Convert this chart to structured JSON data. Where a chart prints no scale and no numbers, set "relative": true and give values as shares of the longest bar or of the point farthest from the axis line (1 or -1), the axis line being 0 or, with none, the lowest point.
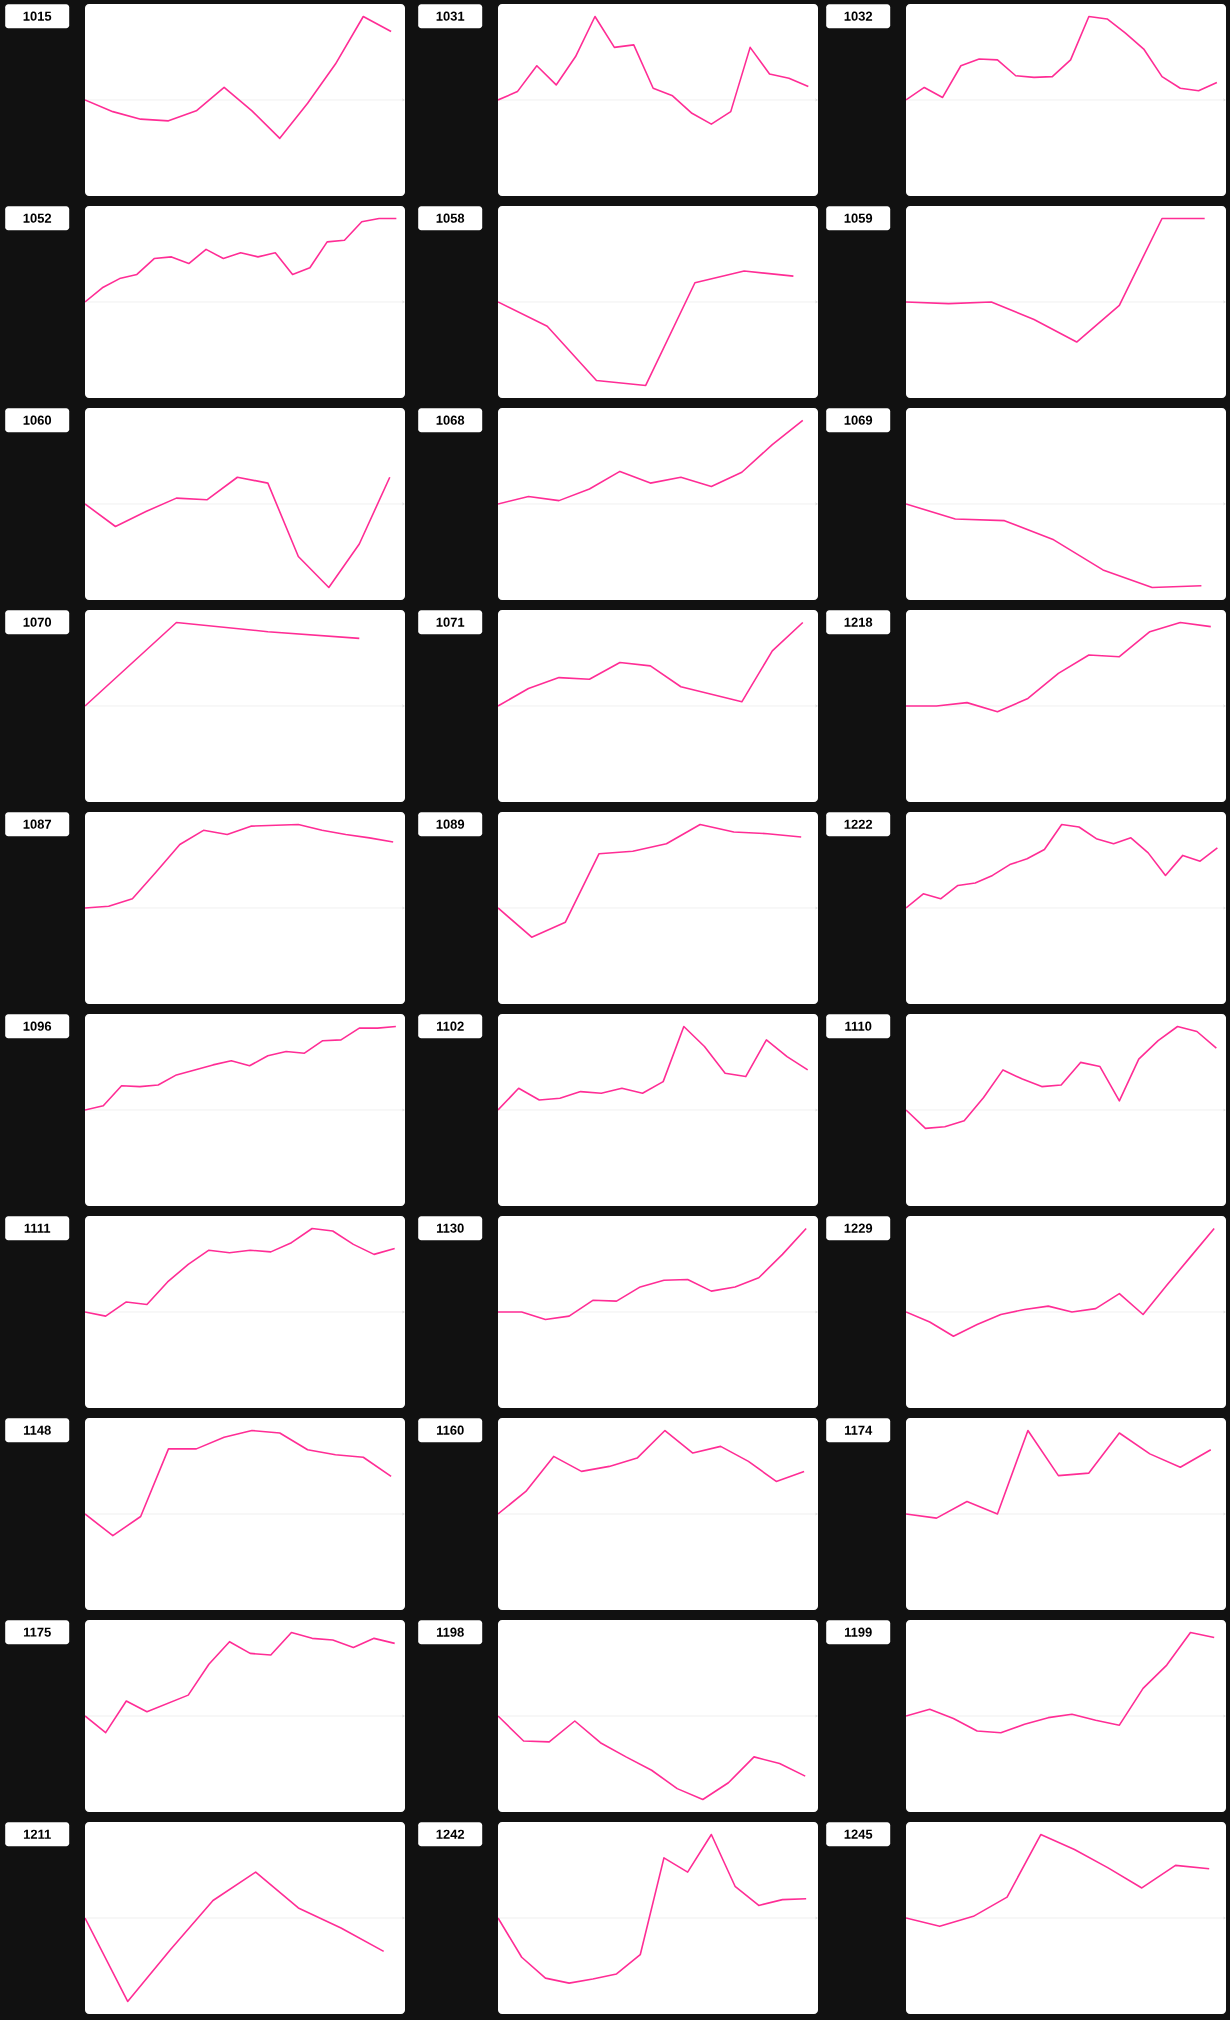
{
  "chart_data": [
    {
      "type": "line",
      "title": "1015",
      "relative": true,
      "color": "#ff2d95",
      "categories": [
        null,
        null,
        null,
        null,
        null,
        null,
        null,
        null,
        null,
        null,
        null,
        null
      ],
      "values": [
        0,
        -0.14,
        -0.23,
        -0.25,
        -0.13,
        0.15,
        -0.13,
        -0.46,
        -0.04,
        0.43,
        1,
        0.82
      ]
    },
    {
      "type": "line",
      "title": "1031",
      "relative": true,
      "color": "#ff2d95",
      "categories": [
        null,
        null,
        null,
        null,
        null,
        null,
        null,
        null,
        null,
        null,
        null,
        null,
        null,
        null,
        null,
        null,
        null
      ],
      "values": [
        0,
        0.1,
        0.41,
        0.18,
        0.52,
        1,
        0.63,
        0.66,
        0.14,
        0.05,
        -0.16,
        -0.29,
        -0.14,
        0.63,
        0.31,
        0.26,
        0.16
      ]
    },
    {
      "type": "line",
      "title": "1032",
      "relative": true,
      "color": "#ff2d95",
      "categories": [
        null,
        null,
        null,
        null,
        null,
        null,
        null,
        null,
        null,
        null,
        null,
        null,
        null,
        null,
        null,
        null,
        null,
        null
      ],
      "values": [
        0,
        0.15,
        0.03,
        0.41,
        0.49,
        0.48,
        0.29,
        0.27,
        0.28,
        0.48,
        1,
        0.97,
        0.8,
        0.61,
        0.28,
        0.14,
        0.11,
        0.21
      ]
    },
    {
      "type": "line",
      "title": "1052",
      "relative": true,
      "color": "#ff2d95",
      "categories": [
        null,
        null,
        null,
        null,
        null,
        null,
        null,
        null,
        null,
        null,
        null,
        null,
        null,
        null,
        null,
        null,
        null,
        null,
        null
      ],
      "values": [
        0,
        0.17,
        0.28,
        0.33,
        0.52,
        0.54,
        0.46,
        0.63,
        0.52,
        0.59,
        0.54,
        0.59,
        0.33,
        0.41,
        0.72,
        0.74,
        0.96,
        1,
        1
      ]
    },
    {
      "type": "line",
      "title": "1058",
      "relative": true,
      "color": "#ff2d95",
      "categories": [
        null,
        null,
        null,
        null,
        null,
        null,
        null
      ],
      "values": [
        0,
        -0.29,
        -0.94,
        -1,
        0.23,
        0.37,
        0.31
      ]
    },
    {
      "type": "line",
      "title": "1059",
      "relative": true,
      "color": "#ff2d95",
      "categories": [
        null,
        null,
        null,
        null,
        null,
        null,
        null,
        null
      ],
      "values": [
        0,
        -0.02,
        0,
        -0.21,
        -0.48,
        -0.04,
        1,
        1
      ]
    },
    {
      "type": "line",
      "title": "1060",
      "relative": true,
      "color": "#ff2d95",
      "categories": [
        null,
        null,
        null,
        null,
        null,
        null,
        null,
        null,
        null,
        null,
        null
      ],
      "values": [
        0,
        -0.27,
        -0.09,
        0.07,
        0.05,
        0.32,
        0.25,
        -0.63,
        -1,
        -0.48,
        0.32
      ]
    },
    {
      "type": "line",
      "title": "1068",
      "relative": true,
      "color": "#ff2d95",
      "categories": [
        null,
        null,
        null,
        null,
        null,
        null,
        null,
        null,
        null,
        null,
        null
      ],
      "values": [
        0,
        0.09,
        0.04,
        0.18,
        0.39,
        0.25,
        0.32,
        0.21,
        0.38,
        0.71,
        1
      ]
    },
    {
      "type": "line",
      "title": "1069",
      "relative": true,
      "color": "#ff2d95",
      "categories": [
        null,
        null,
        null,
        null,
        null,
        null,
        null
      ],
      "values": [
        0,
        -0.18,
        -0.2,
        -0.43,
        -0.79,
        -1,
        -0.98
      ]
    },
    {
      "type": "line",
      "title": "1070",
      "relative": true,
      "color": "#ff2d95",
      "categories": [
        null,
        null,
        null,
        null
      ],
      "values": [
        0,
        1,
        0.89,
        0.81
      ]
    },
    {
      "type": "line",
      "title": "1071",
      "relative": true,
      "color": "#ff2d95",
      "categories": [
        null,
        null,
        null,
        null,
        null,
        null,
        null,
        null,
        null,
        null,
        null
      ],
      "values": [
        0,
        0.21,
        0.34,
        0.32,
        0.52,
        0.48,
        0.23,
        0.14,
        0.05,
        0.66,
        1
      ]
    },
    {
      "type": "line",
      "title": "1218",
      "relative": true,
      "color": "#ff2d95",
      "categories": [
        null,
        null,
        null,
        null,
        null,
        null,
        null,
        null,
        null,
        null,
        null
      ],
      "values": [
        0,
        0,
        0.04,
        -0.07,
        0.09,
        0.39,
        0.61,
        0.59,
        0.89,
        1,
        0.95
      ]
    },
    {
      "type": "line",
      "title": "1087",
      "relative": true,
      "color": "#ff2d95",
      "categories": [
        null,
        null,
        null,
        null,
        null,
        null,
        null,
        null,
        null,
        null,
        null,
        null,
        null,
        null
      ],
      "values": [
        0,
        0.02,
        0.11,
        0.43,
        0.76,
        0.93,
        0.88,
        0.98,
        0.99,
        1,
        0.93,
        0.88,
        0.84,
        0.79
      ]
    },
    {
      "type": "line",
      "title": "1089",
      "relative": true,
      "color": "#ff2d95",
      "categories": [
        null,
        null,
        null,
        null,
        null,
        null,
        null,
        null,
        null,
        null
      ],
      "values": [
        0,
        -0.35,
        -0.17,
        0.65,
        0.68,
        0.77,
        1,
        0.91,
        0.89,
        0.85
      ]
    },
    {
      "type": "line",
      "title": "1222",
      "relative": true,
      "color": "#ff2d95",
      "categories": [
        null,
        null,
        null,
        null,
        null,
        null,
        null,
        null,
        null,
        null,
        null,
        null,
        null,
        null,
        null,
        null,
        null,
        null,
        null
      ],
      "values": [
        0,
        0.17,
        0.11,
        0.27,
        0.3,
        0.39,
        0.52,
        0.59,
        0.7,
        1,
        0.97,
        0.83,
        0.77,
        0.84,
        0.66,
        0.39,
        0.63,
        0.56,
        0.72
      ]
    },
    {
      "type": "line",
      "title": "1096",
      "relative": true,
      "color": "#ff2d95",
      "categories": [
        null,
        null,
        null,
        null,
        null,
        null,
        null,
        null,
        null,
        null,
        null,
        null,
        null,
        null,
        null,
        null,
        null,
        null
      ],
      "values": [
        0,
        0.05,
        0.29,
        0.28,
        0.3,
        0.42,
        0.48,
        0.54,
        0.59,
        0.53,
        0.65,
        0.7,
        0.68,
        0.83,
        0.84,
        0.98,
        0.98,
        1
      ]
    },
    {
      "type": "line",
      "title": "1102",
      "relative": true,
      "color": "#ff2d95",
      "categories": [
        null,
        null,
        null,
        null,
        null,
        null,
        null,
        null,
        null,
        null,
        null,
        null,
        null,
        null,
        null,
        null
      ],
      "values": [
        0,
        0.26,
        0.12,
        0.14,
        0.22,
        0.2,
        0.26,
        0.2,
        0.34,
        1,
        0.76,
        0.44,
        0.4,
        0.84,
        0.64,
        0.48
      ]
    },
    {
      "type": "line",
      "title": "1110",
      "relative": true,
      "color": "#ff2d95",
      "categories": [
        null,
        null,
        null,
        null,
        null,
        null,
        null,
        null,
        null,
        null,
        null,
        null,
        null,
        null,
        null,
        null,
        null
      ],
      "values": [
        0,
        -0.22,
        -0.2,
        -0.13,
        0.15,
        0.48,
        0.37,
        0.28,
        0.3,
        0.57,
        0.52,
        0.11,
        0.61,
        0.83,
        1,
        0.94,
        0.74
      ]
    },
    {
      "type": "line",
      "title": "1111",
      "relative": true,
      "color": "#ff2d95",
      "categories": [
        null,
        null,
        null,
        null,
        null,
        null,
        null,
        null,
        null,
        null,
        null,
        null,
        null,
        null,
        null,
        null
      ],
      "values": [
        0,
        -0.05,
        0.12,
        0.09,
        0.36,
        0.57,
        0.74,
        0.71,
        0.74,
        0.72,
        0.83,
        1,
        0.97,
        0.81,
        0.69,
        0.76
      ]
    },
    {
      "type": "line",
      "title": "1130",
      "relative": true,
      "color": "#ff2d95",
      "categories": [
        null,
        null,
        null,
        null,
        null,
        null,
        null,
        null,
        null,
        null,
        null,
        null,
        null,
        null
      ],
      "values": [
        0,
        0,
        -0.09,
        -0.05,
        0.14,
        0.13,
        0.3,
        0.38,
        0.39,
        0.25,
        0.3,
        0.41,
        0.69,
        1
      ]
    },
    {
      "type": "line",
      "title": "1229",
      "relative": true,
      "color": "#ff2d95",
      "categories": [
        null,
        null,
        null,
        null,
        null,
        null,
        null,
        null,
        null,
        null,
        null,
        null,
        null,
        null
      ],
      "values": [
        0,
        -0.12,
        -0.29,
        -0.15,
        -0.03,
        0.03,
        0.07,
        0,
        0.04,
        0.22,
        -0.03,
        0.32,
        0.66,
        1
      ]
    },
    {
      "type": "line",
      "title": "1148",
      "relative": true,
      "color": "#ff2d95",
      "categories": [
        null,
        null,
        null,
        null,
        null,
        null,
        null,
        null,
        null,
        null,
        null,
        null
      ],
      "values": [
        0,
        -0.26,
        -0.03,
        0.78,
        0.78,
        0.92,
        1,
        0.97,
        0.77,
        0.71,
        0.68,
        0.45
      ]
    },
    {
      "type": "line",
      "title": "1160",
      "relative": true,
      "color": "#ff2d95",
      "categories": [
        null,
        null,
        null,
        null,
        null,
        null,
        null,
        null,
        null,
        null,
        null,
        null
      ],
      "values": [
        0,
        0.27,
        0.69,
        0.51,
        0.57,
        0.67,
        1,
        0.73,
        0.81,
        0.63,
        0.39,
        0.51
      ]
    },
    {
      "type": "line",
      "title": "1174",
      "relative": true,
      "color": "#ff2d95",
      "categories": [
        null,
        null,
        null,
        null,
        null,
        null,
        null,
        null,
        null,
        null,
        null
      ],
      "values": [
        0,
        -0.05,
        0.15,
        0,
        1,
        0.46,
        0.49,
        0.97,
        0.72,
        0.56,
        0.77
      ]
    },
    {
      "type": "line",
      "title": "1175",
      "relative": true,
      "color": "#ff2d95",
      "categories": [
        null,
        null,
        null,
        null,
        null,
        null,
        null,
        null,
        null,
        null,
        null,
        null,
        null,
        null,
        null,
        null
      ],
      "values": [
        0,
        -0.2,
        0.18,
        0.05,
        0.15,
        0.25,
        0.62,
        0.89,
        0.75,
        0.73,
        1,
        0.93,
        0.91,
        0.82,
        0.93,
        0.87
      ]
    },
    {
      "type": "line",
      "title": "1198",
      "relative": true,
      "color": "#ff2d95",
      "categories": [
        null,
        null,
        null,
        null,
        null,
        null,
        null,
        null,
        null,
        null,
        null,
        null,
        null
      ],
      "values": [
        0,
        -0.3,
        -0.31,
        -0.06,
        -0.32,
        -0.49,
        -0.65,
        -0.87,
        -1,
        -0.8,
        -0.49,
        -0.57,
        -0.72
      ]
    },
    {
      "type": "line",
      "title": "1199",
      "relative": true,
      "color": "#ff2d95",
      "categories": [
        null,
        null,
        null,
        null,
        null,
        null,
        null,
        null,
        null,
        null,
        null,
        null,
        null,
        null
      ],
      "values": [
        0,
        0.08,
        -0.03,
        -0.18,
        -0.2,
        -0.1,
        -0.02,
        0.02,
        -0.05,
        -0.11,
        0.33,
        0.61,
        1,
        0.94
      ]
    },
    {
      "type": "line",
      "title": "1211",
      "relative": true,
      "color": "#ff2d95",
      "categories": [
        null,
        null,
        null,
        null,
        null,
        null,
        null,
        null
      ],
      "values": [
        0,
        -1,
        -0.38,
        0.21,
        0.55,
        0.12,
        -0.12,
        -0.4
      ]
    },
    {
      "type": "line",
      "title": "1242",
      "relative": true,
      "color": "#ff2d95",
      "categories": [
        null,
        null,
        null,
        null,
        null,
        null,
        null,
        null,
        null,
        null,
        null,
        null,
        null,
        null
      ],
      "values": [
        0,
        -0.47,
        -0.72,
        -0.78,
        -0.73,
        -0.67,
        -0.44,
        0.72,
        0.55,
        1,
        0.38,
        0.15,
        0.22,
        0.23
      ]
    },
    {
      "type": "line",
      "title": "1245",
      "relative": true,
      "color": "#ff2d95",
      "categories": [
        null,
        null,
        null,
        null,
        null,
        null,
        null,
        null,
        null,
        null
      ],
      "values": [
        0,
        -0.1,
        0.02,
        0.25,
        1,
        0.82,
        0.6,
        0.36,
        0.63,
        0.59
      ]
    }
  ]
}
